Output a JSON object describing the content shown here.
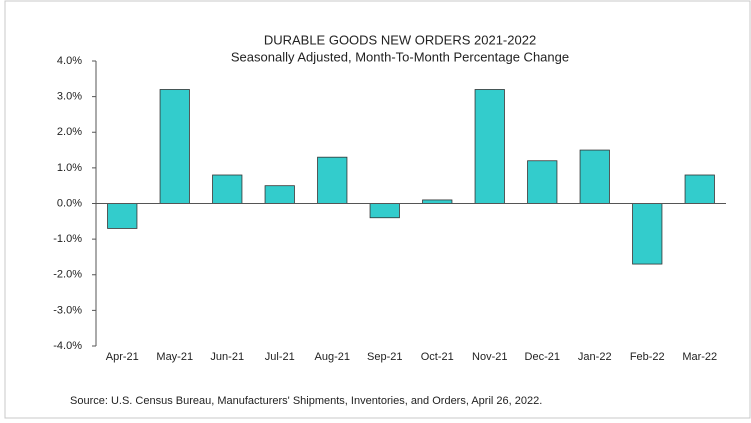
{
  "chart_data": {
    "type": "bar",
    "title": "DURABLE GOODS NEW ORDERS 2021-2022",
    "subtitle": "Seasonally Adjusted,  Month-To-Month Percentage Change",
    "source": "Source: U.S. Census Bureau, Manufacturers' Shipments, Inventories, and Orders, April 26, 2022.",
    "categories": [
      "Apr-21",
      "May-21",
      "Jun-21",
      "Jul-21",
      "Aug-21",
      "Sep-21",
      "Oct-21",
      "Nov-21",
      "Dec-21",
      "Jan-22",
      "Feb-22",
      "Mar-22"
    ],
    "values": [
      -0.7,
      3.2,
      0.8,
      0.5,
      1.3,
      -0.4,
      0.1,
      3.2,
      1.2,
      1.5,
      -1.7,
      0.8
    ],
    "color": "#33cccc",
    "ylim": [
      -4,
      4
    ],
    "yticks": [
      {
        "value": 4,
        "label": "4.0%"
      },
      {
        "value": 3,
        "label": "3.0%"
      },
      {
        "value": 2,
        "label": "2.0%"
      },
      {
        "value": 1,
        "label": "1.0%"
      },
      {
        "value": 0,
        "label": "0.0%"
      },
      {
        "value": -1,
        "label": "-1.0%"
      },
      {
        "value": -2,
        "label": "-2.0%"
      },
      {
        "value": -3,
        "label": "-3.0%"
      },
      {
        "value": -4,
        "label": "-4.0%"
      }
    ],
    "grid": false
  }
}
